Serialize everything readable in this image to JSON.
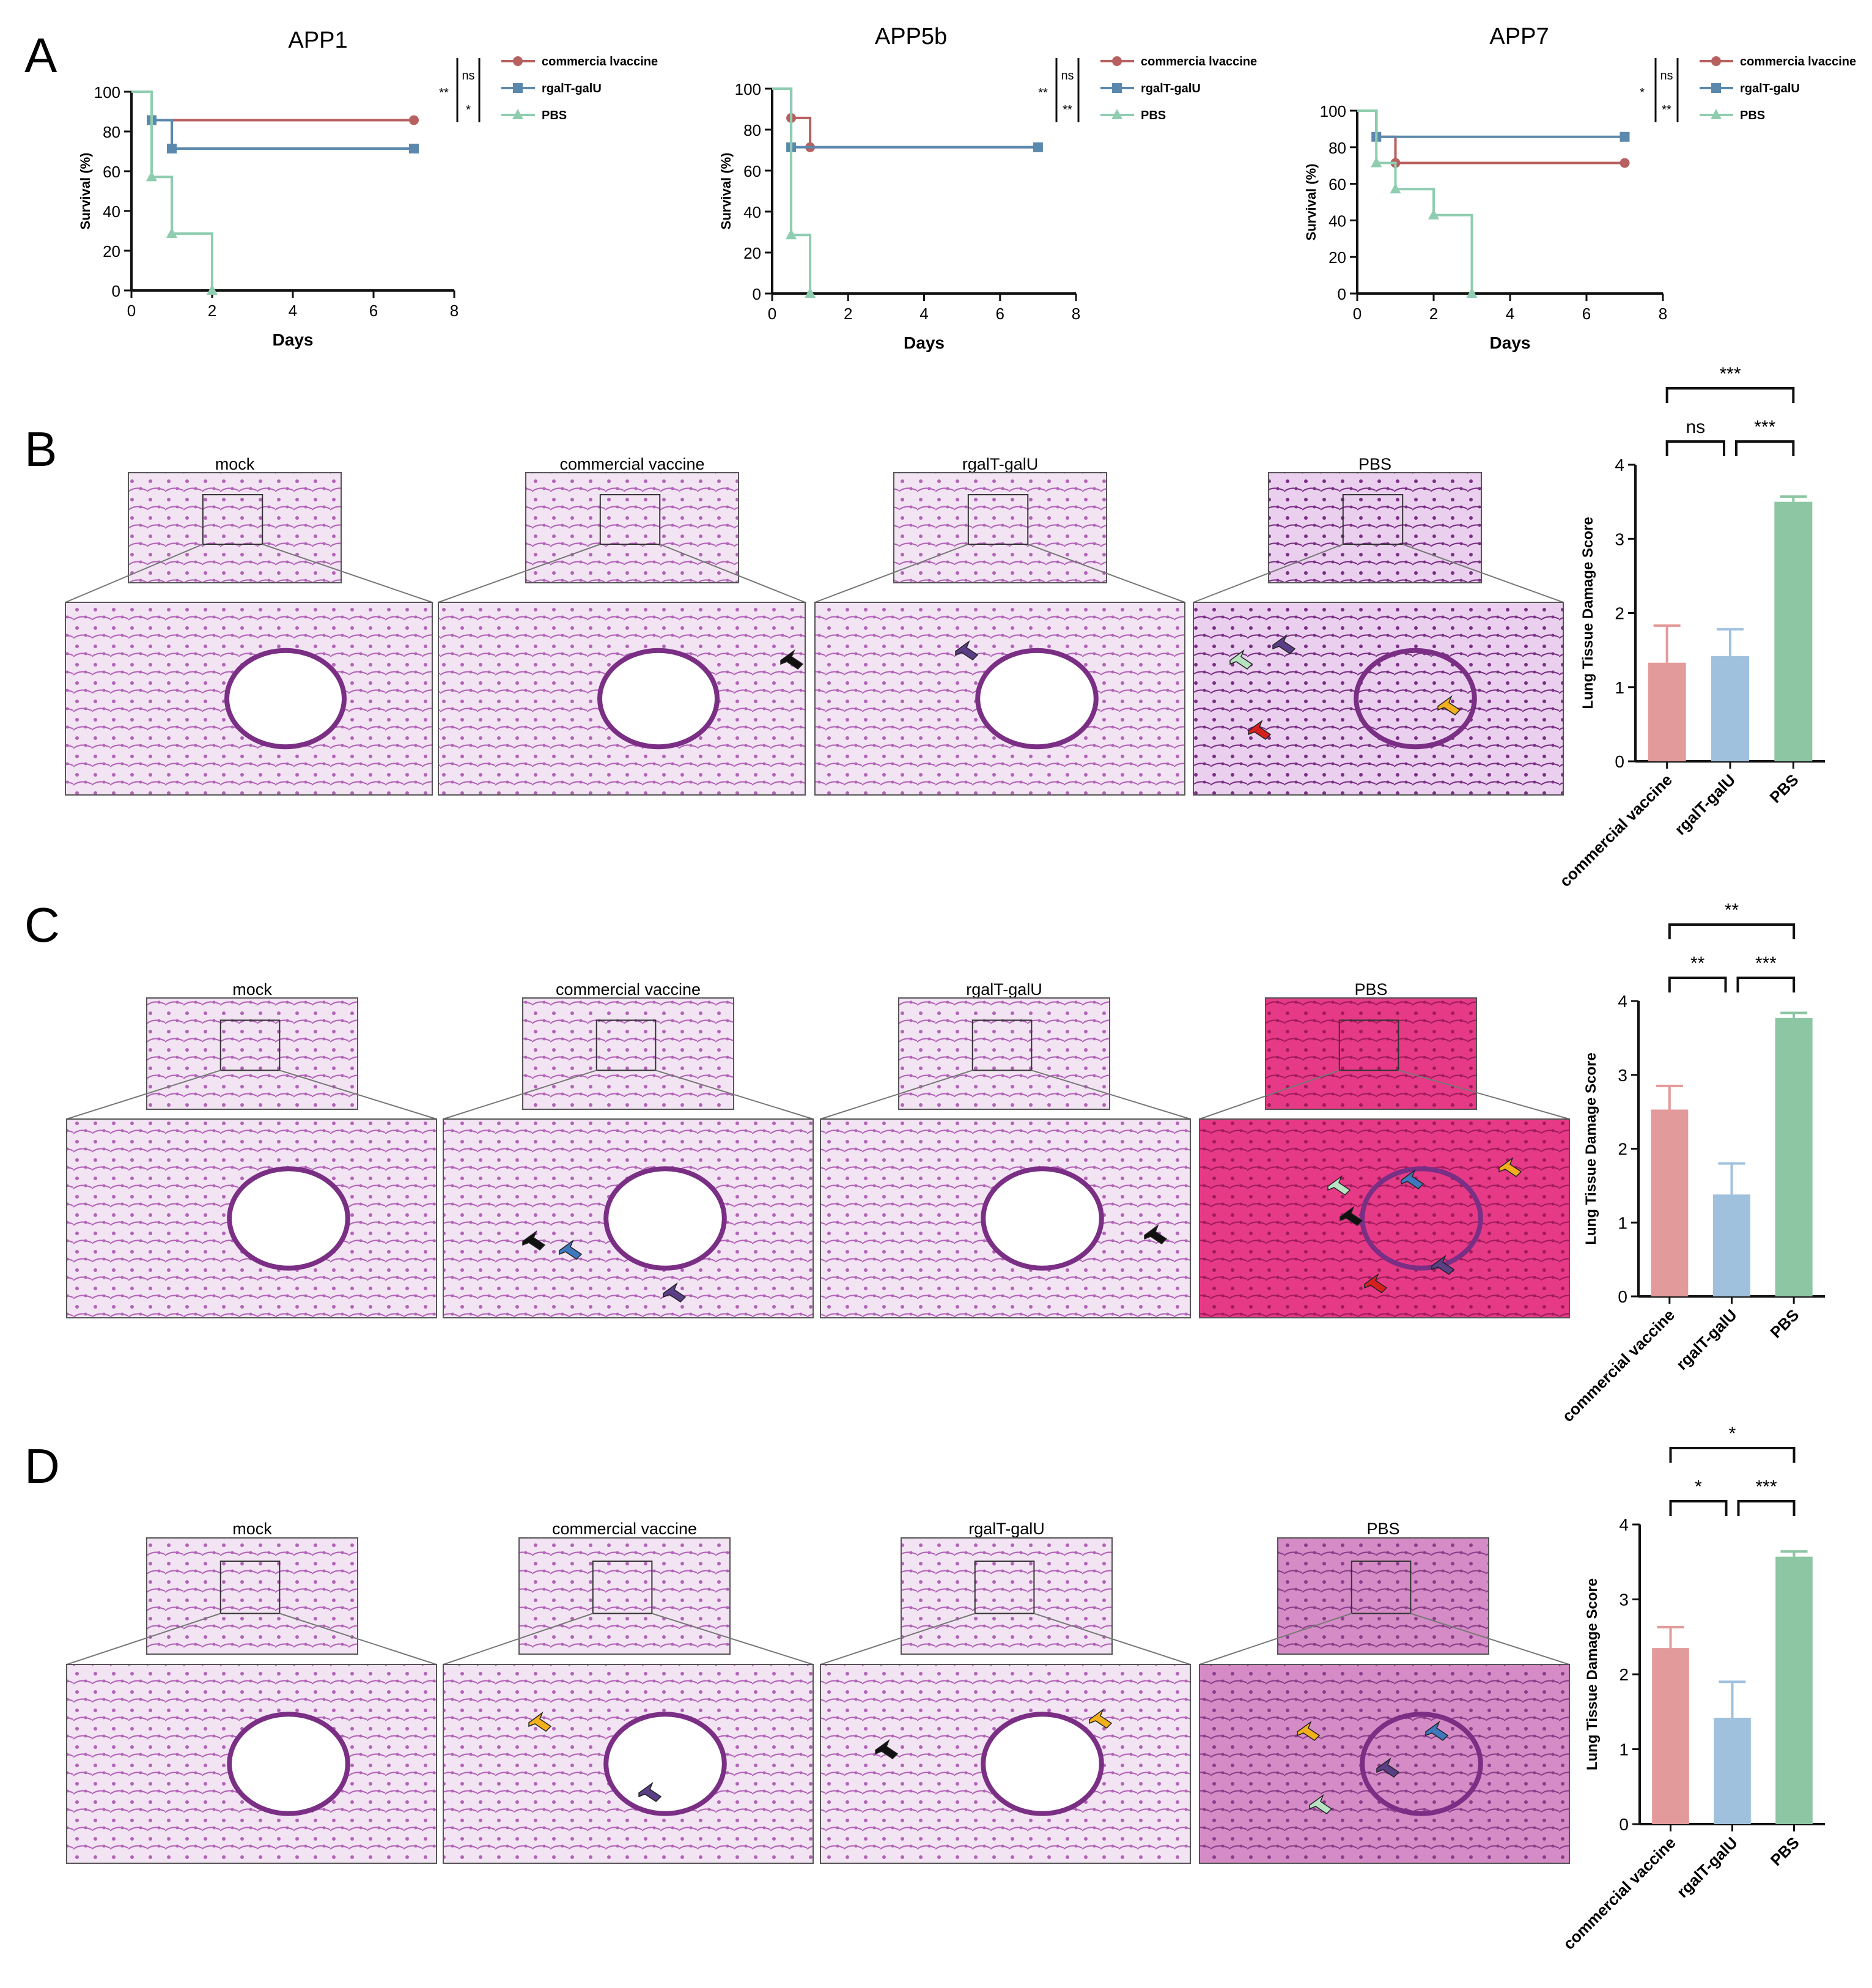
{
  "figure": {
    "panel_labels": [
      "A",
      "B",
      "C",
      "D"
    ],
    "colors": {
      "commercial": "#b7605f",
      "rgalt": "#5b88ad",
      "pbs": "#8fcdb0",
      "bar_commercial": "#e39a9a",
      "bar_rgalt": "#9fc1de",
      "bar_pbs": "#8cc6a2",
      "tissue_light": "#f3e4f3",
      "tissue_stain": "#b264b8",
      "tissue_stain_dark": "#7a2f85",
      "tissue_pbs_c": "#e73a86",
      "tissue_pbs_d": "#d58cc6",
      "arrow_black": "#111111",
      "arrow_purple": "#5b3f86",
      "arrow_green": "#b7e3c2",
      "arrow_red": "#d62020",
      "arrow_yellow": "#f2b01c",
      "arrow_blue": "#3f78bd"
    }
  },
  "panelA": {
    "legend": [
      "commercia lvaccine",
      "rgalT-galU",
      "PBS"
    ],
    "xlabel": "Days",
    "ylabel": "Survival (%)",
    "charts": [
      {
        "title": "APP1",
        "sig": [
          "**",
          "ns",
          "*"
        ]
      },
      {
        "title": "APP5b",
        "sig": [
          "**",
          "ns",
          "**"
        ]
      },
      {
        "title": "APP7",
        "sig": [
          "*",
          "ns",
          "**"
        ]
      }
    ]
  },
  "histology": {
    "B": [
      "mock",
      "commercial vaccine",
      "rgalT-galU",
      "PBS"
    ],
    "C": [
      "mock",
      "commercial vaccine",
      "rgalT-galU",
      "PBS"
    ],
    "D": [
      "mock",
      "commercial vaccine",
      "rgalT-galU",
      "PBS"
    ]
  },
  "bar_labels": {
    "ylabel": "Lung Tissue Damage Score",
    "categories": [
      "commercial vaccine",
      "rgalT-galU",
      "PBS"
    ]
  },
  "chart_data": [
    {
      "type": "line",
      "step": true,
      "title": "APP1",
      "xlabel": "Days",
      "ylabel": "Survival (%)",
      "xlim": [
        0,
        8
      ],
      "ylim": [
        0,
        100
      ],
      "xticks": [
        0,
        2,
        4,
        6,
        8
      ],
      "yticks": [
        0,
        20,
        40,
        60,
        80,
        100
      ],
      "series": [
        {
          "name": "commercia lvaccine",
          "x": [
            0,
            0.5,
            7
          ],
          "y": [
            100,
            85.7,
            85.7
          ]
        },
        {
          "name": "rgalT-galU",
          "x": [
            0,
            0.5,
            1,
            7
          ],
          "y": [
            100,
            85.7,
            71.4,
            71.4
          ]
        },
        {
          "name": "PBS",
          "x": [
            0,
            0.5,
            1,
            2
          ],
          "y": [
            100,
            57.1,
            28.6,
            0
          ]
        }
      ],
      "significance": [
        "**",
        "ns",
        "*"
      ]
    },
    {
      "type": "line",
      "step": true,
      "title": "APP5b",
      "xlabel": "Days",
      "ylabel": "Survival (%)",
      "xlim": [
        0,
        8
      ],
      "ylim": [
        0,
        100
      ],
      "xticks": [
        0,
        2,
        4,
        6,
        8
      ],
      "yticks": [
        0,
        20,
        40,
        60,
        80,
        100
      ],
      "series": [
        {
          "name": "commercia lvaccine",
          "x": [
            0,
            0.5,
            1,
            7
          ],
          "y": [
            100,
            85.7,
            71.4,
            71.4
          ]
        },
        {
          "name": "rgalT-galU",
          "x": [
            0,
            0.5,
            7
          ],
          "y": [
            100,
            71.4,
            71.4
          ]
        },
        {
          "name": "PBS",
          "x": [
            0,
            0.5,
            1
          ],
          "y": [
            100,
            28.6,
            0
          ]
        }
      ],
      "significance": [
        "**",
        "ns",
        "**"
      ]
    },
    {
      "type": "line",
      "step": true,
      "title": "APP7",
      "xlabel": "Days",
      "ylabel": "Survival (%)",
      "xlim": [
        0,
        8
      ],
      "ylim": [
        0,
        100
      ],
      "xticks": [
        0,
        2,
        4,
        6,
        8
      ],
      "yticks": [
        0,
        20,
        40,
        60,
        80,
        100
      ],
      "series": [
        {
          "name": "commercia lvaccine",
          "x": [
            0,
            0.5,
            1,
            7
          ],
          "y": [
            100,
            85.7,
            71.4,
            71.4
          ]
        },
        {
          "name": "rgalT-galU",
          "x": [
            0,
            0.5,
            7
          ],
          "y": [
            100,
            85.7,
            85.7
          ]
        },
        {
          "name": "PBS",
          "x": [
            0,
            0.5,
            1,
            2,
            3
          ],
          "y": [
            100,
            71.4,
            57.1,
            42.9,
            0
          ]
        }
      ],
      "significance": [
        "*",
        "ns",
        "**"
      ]
    },
    {
      "type": "bar",
      "panel": "B",
      "categories": [
        "commercial vaccine",
        "rgalT-galU",
        "PBS"
      ],
      "values": [
        1.33,
        1.42,
        3.5
      ],
      "errors": [
        0.5,
        0.36,
        0.07
      ],
      "ylabel": "Lung Tissue Damage Score",
      "ylim": [
        0,
        4
      ],
      "yticks": [
        0,
        1,
        2,
        3,
        4
      ],
      "comparisons": [
        {
          "pair": [
            0,
            2
          ],
          "label": "***"
        },
        {
          "pair": [
            0,
            1
          ],
          "label": "ns"
        },
        {
          "pair": [
            1,
            2
          ],
          "label": "***"
        }
      ]
    },
    {
      "type": "bar",
      "panel": "C",
      "categories": [
        "commercial vaccine",
        "rgalT-galU",
        "PBS"
      ],
      "values": [
        2.53,
        1.38,
        3.77
      ],
      "errors": [
        0.32,
        0.42,
        0.07
      ],
      "ylabel": "Lung Tissue Damage Score",
      "ylim": [
        0,
        4
      ],
      "yticks": [
        0,
        1,
        2,
        3,
        4
      ],
      "comparisons": [
        {
          "pair": [
            0,
            2
          ],
          "label": "**"
        },
        {
          "pair": [
            0,
            1
          ],
          "label": "**"
        },
        {
          "pair": [
            1,
            2
          ],
          "label": "***"
        }
      ]
    },
    {
      "type": "bar",
      "panel": "D",
      "categories": [
        "commercial vaccine",
        "rgalT-galU",
        "PBS"
      ],
      "values": [
        2.35,
        1.42,
        3.57
      ],
      "errors": [
        0.28,
        0.48,
        0.07
      ],
      "ylabel": "Lung Tissue Damage Score",
      "ylim": [
        0,
        4
      ],
      "yticks": [
        0,
        1,
        2,
        3,
        4
      ],
      "comparisons": [
        {
          "pair": [
            0,
            2
          ],
          "label": "*"
        },
        {
          "pair": [
            0,
            1
          ],
          "label": "*"
        },
        {
          "pair": [
            1,
            2
          ],
          "label": "***"
        }
      ]
    }
  ]
}
